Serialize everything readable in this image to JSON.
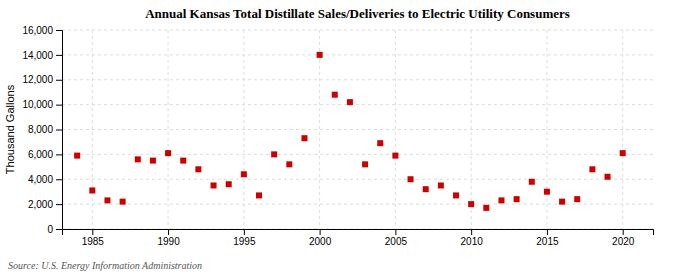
{
  "chart_data": {
    "type": "scatter",
    "title": "Annual Kansas Total Distillate Sales/Deliveries to Electric Utility Consumers",
    "y_label": "Thousand Gallons",
    "source": "Source: U.S. Energy Information Administration",
    "x": [
      1984,
      1985,
      1986,
      1987,
      1988,
      1989,
      1990,
      1991,
      1992,
      1993,
      1994,
      1995,
      1996,
      1997,
      1998,
      1999,
      2000,
      2001,
      2002,
      2003,
      2004,
      2005,
      2006,
      2007,
      2008,
      2009,
      2010,
      2011,
      2012,
      2013,
      2014,
      2015,
      2016,
      2017,
      2018,
      2019,
      2020
    ],
    "values": [
      5900,
      3100,
      2300,
      2200,
      5600,
      5500,
      6100,
      5500,
      4800,
      3500,
      3600,
      4400,
      2700,
      6000,
      5200,
      7300,
      14000,
      10800,
      10200,
      5200,
      6900,
      5900,
      4000,
      3200,
      3500,
      2700,
      2000,
      1700,
      2300,
      2400,
      3800,
      3000,
      2200,
      2400,
      4800,
      4200,
      6100
    ],
    "color": "#cc0000",
    "marker": "square",
    "xlim": [
      1983,
      2022
    ],
    "xticks": [
      1985,
      1990,
      1995,
      2000,
      2005,
      2010,
      2015,
      2020
    ],
    "ylim": [
      0,
      16000
    ],
    "yticks": [
      0,
      {
        "value": 2000,
        "label": "2,000"
      },
      {
        "value": 4000,
        "label": "4,000"
      },
      {
        "value": 6000,
        "label": "6,000"
      },
      {
        "value": 8000,
        "label": "8,000"
      },
      {
        "value": 10000,
        "label": "10,000"
      },
      {
        "value": 12000,
        "label": "12,000"
      },
      {
        "value": 14000,
        "label": "14,000"
      },
      {
        "value": 16000,
        "label": "16,000"
      }
    ],
    "grid": true
  }
}
